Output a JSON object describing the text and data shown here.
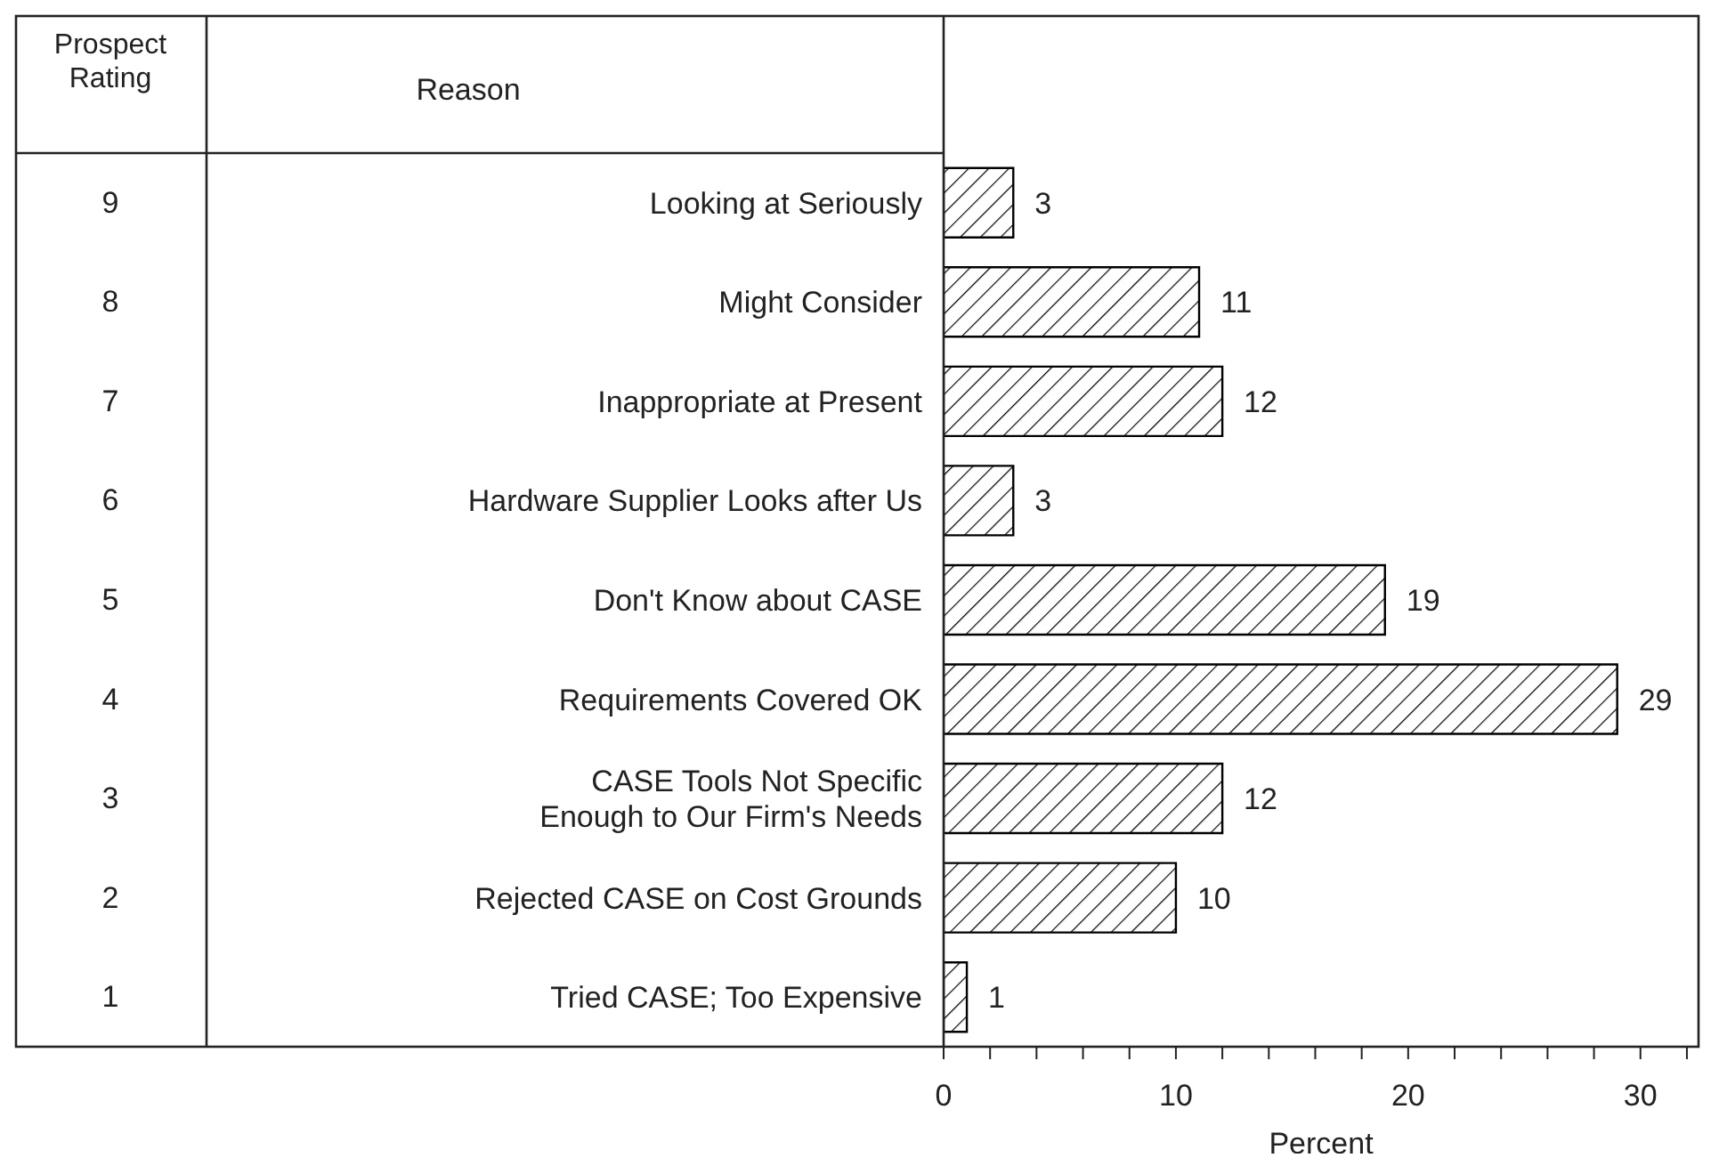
{
  "chart_data": {
    "type": "bar",
    "orientation": "horizontal",
    "categories": [
      "Looking at Seriously",
      "Might Consider",
      "Inappropriate at Present",
      "Hardware Supplier Looks after Us",
      "Don't Know about CASE",
      "Requirements Covered OK",
      "CASE Tools Not Specific Enough to Our Firm's Needs",
      "Rejected CASE on Cost Grounds",
      "Tried CASE; Too Expensive"
    ],
    "y2_categories": [
      "9",
      "8",
      "7",
      "6",
      "5",
      "4",
      "3",
      "2",
      "1"
    ],
    "values": [
      3,
      11,
      12,
      3,
      19,
      29,
      12,
      10,
      1
    ],
    "color": "#000000",
    "xlim": [
      0,
      32.5
    ],
    "xticks": [
      0,
      {
        "value": 2,
        "label": null
      },
      {
        "value": 4,
        "label": null
      },
      {
        "value": 6,
        "label": null
      },
      {
        "value": 8,
        "label": null
      },
      10,
      {
        "value": 12,
        "label": null
      },
      {
        "value": 14,
        "label": null
      },
      {
        "value": 16,
        "label": null
      },
      {
        "value": 18,
        "label": null
      },
      20,
      {
        "value": 22,
        "label": null
      },
      {
        "value": 24,
        "label": null
      },
      {
        "value": 26,
        "label": null
      },
      {
        "value": 28,
        "label": null
      },
      30,
      {
        "value": 32,
        "label": null
      }
    ],
    "xlabel": "Percent",
    "data_labels": true,
    "annotations": [
      "Prospect Rating",
      "Reason"
    ]
  }
}
